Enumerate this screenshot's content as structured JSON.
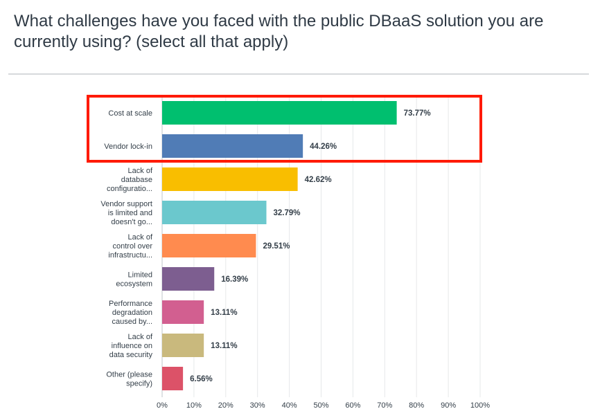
{
  "question": "What challenges have you faced with the public DBaaS solution you are currently using? (select all that apply)",
  "chart_data": {
    "type": "bar",
    "orientation": "horizontal",
    "categories": [
      [
        "Cost at scale"
      ],
      [
        "Vendor lock-in"
      ],
      [
        "Lack of",
        "database",
        "configuratio..."
      ],
      [
        "Vendor support",
        "is limited and",
        "doesn't go..."
      ],
      [
        "Lack of",
        "control over",
        "infrastructu..."
      ],
      [
        "Limited",
        "ecosystem"
      ],
      [
        "Performance",
        "degradation",
        "caused by..."
      ],
      [
        "Lack of",
        "influence on",
        "data security"
      ],
      [
        "Other (please",
        "specify)"
      ]
    ],
    "values": [
      73.77,
      44.26,
      42.62,
      32.79,
      29.51,
      16.39,
      13.11,
      13.11,
      6.56
    ],
    "value_labels": [
      "73.77%",
      "44.26%",
      "42.62%",
      "32.79%",
      "29.51%",
      "16.39%",
      "13.11%",
      "13.11%",
      "6.56%"
    ],
    "colors": [
      "#00bf6f",
      "#507cb6",
      "#f9be00",
      "#6bc8cd",
      "#ff8b4f",
      "#7d5e90",
      "#d25f90",
      "#c9b97d",
      "#dc5268"
    ],
    "xlim": [
      0,
      100
    ],
    "x_ticks": [
      "0%",
      "10%",
      "20%",
      "30%",
      "40%",
      "50%",
      "60%",
      "70%",
      "80%",
      "90%",
      "100%"
    ],
    "grid": "vertical",
    "highlight": {
      "color": "#ff1a00",
      "covers_categories": [
        0,
        1
      ]
    }
  }
}
